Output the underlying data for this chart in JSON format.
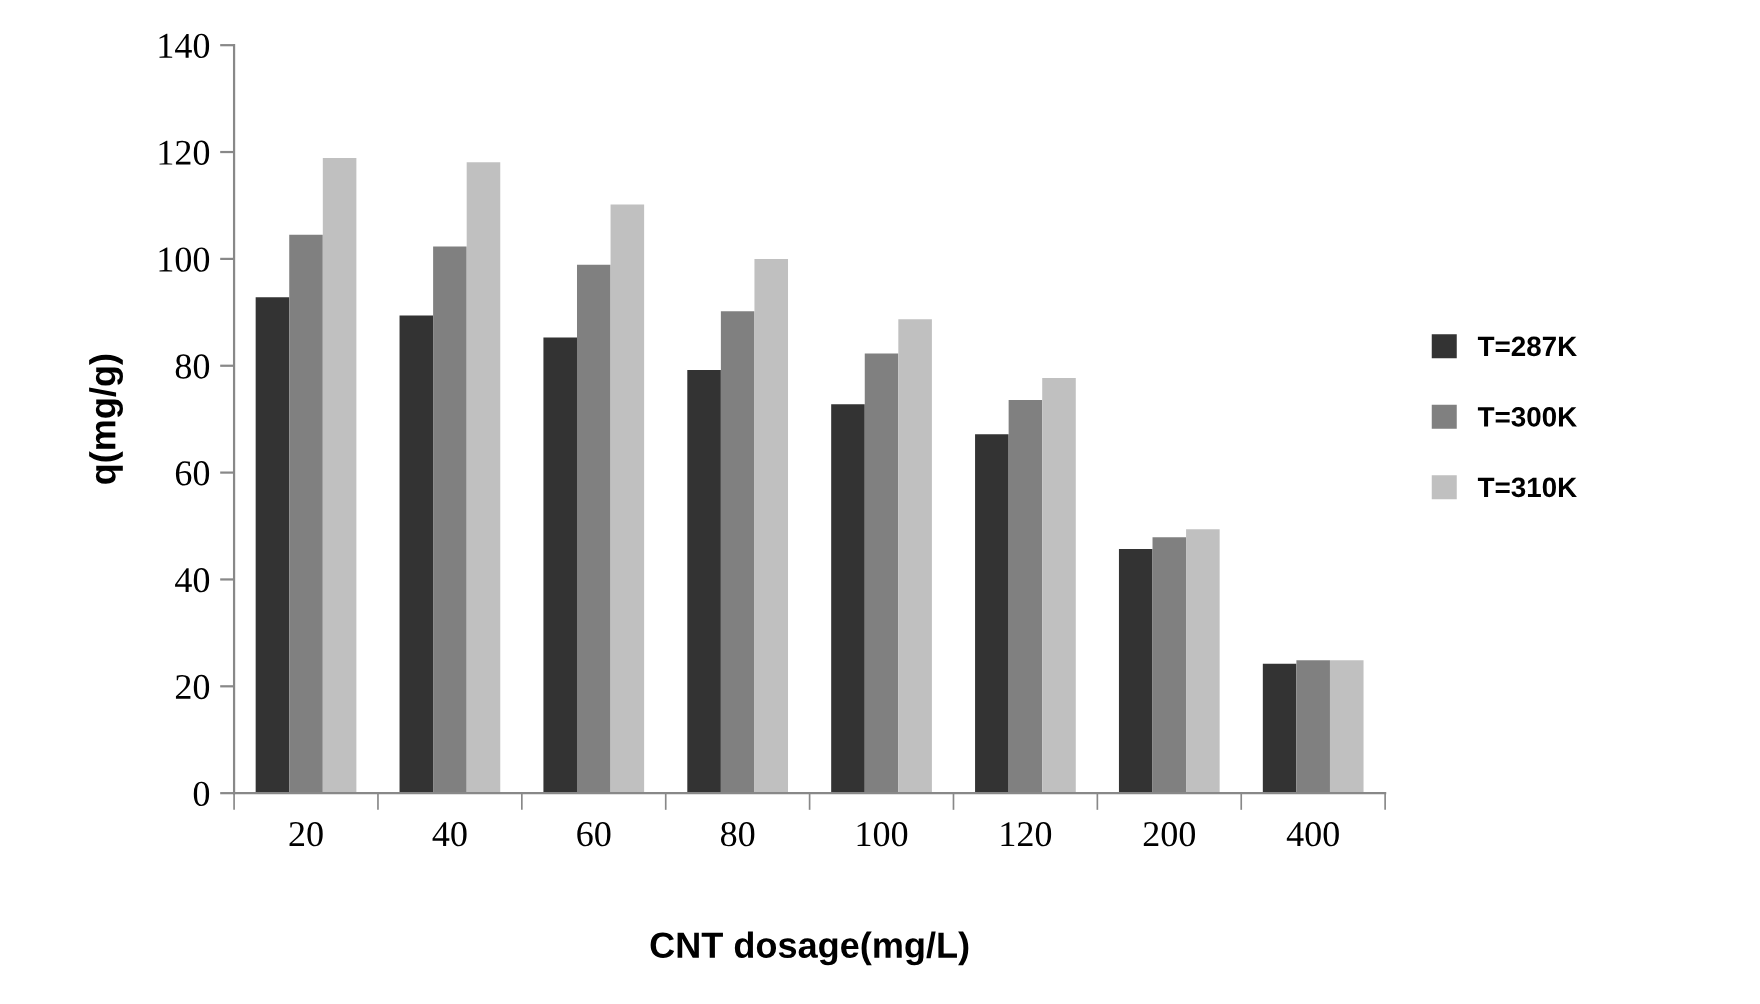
{
  "chart_data": {
    "type": "bar",
    "xlabel": "CNT dosage(mg/L)",
    "ylabel": "q(mg/g)",
    "categories": [
      "20",
      "40",
      "60",
      "80",
      "100",
      "120",
      "200",
      "400"
    ],
    "series": [
      {
        "name": "T=287K",
        "color": "#333333",
        "values": [
          92.8,
          89.4,
          85.3,
          79.2,
          72.8,
          67.2,
          45.7,
          24.2
        ]
      },
      {
        "name": "T=300K",
        "color": "#808080",
        "values": [
          104.5,
          102.3,
          98.9,
          90.2,
          82.3,
          73.6,
          47.9,
          24.9
        ]
      },
      {
        "name": "T=310K",
        "color": "#c0c0c0",
        "values": [
          118.9,
          118.1,
          110.2,
          100,
          88.7,
          77.7,
          49.4,
          24.9
        ]
      }
    ],
    "ylim": [
      0,
      140
    ],
    "yticks": [
      0,
      20,
      40,
      60,
      80,
      100,
      120,
      140
    ],
    "grid": false,
    "legend": "right"
  }
}
